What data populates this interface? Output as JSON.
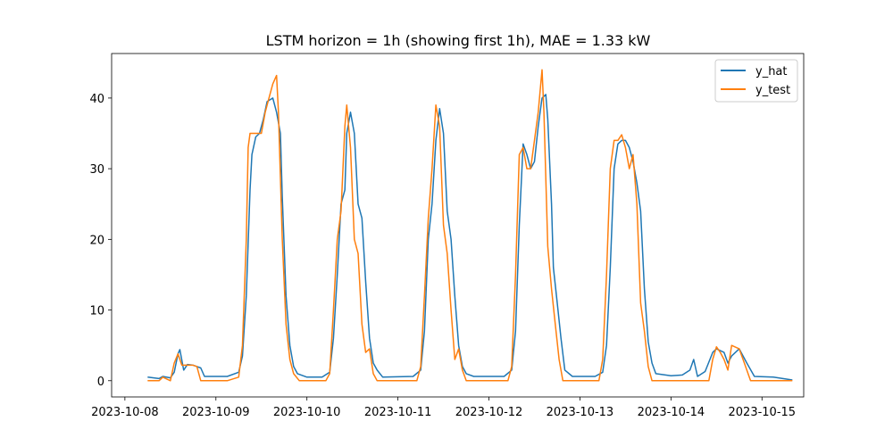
{
  "chart_data": {
    "type": "line",
    "title": "LSTM horizon = 1h (showing first 1h), MAE = 1.33 kW",
    "xlabel": "",
    "ylabel": "",
    "x_range": [
      "2023-10-07T20:30",
      "2023-10-15T11:00"
    ],
    "ylim": [
      -2.3,
      46.3
    ],
    "x_ticks": [
      "2023-10-08",
      "2023-10-09",
      "2023-10-10",
      "2023-10-11",
      "2023-10-12",
      "2023-10-13",
      "2023-10-14",
      "2023-10-15"
    ],
    "y_ticks": [
      0,
      10,
      20,
      30,
      40
    ],
    "grid": false,
    "legend": "top-right",
    "series": [
      {
        "name": "y_hat",
        "color": "#1f77b4",
        "points": [
          [
            "2023-10-08T06:00",
            0.5
          ],
          [
            "2023-10-08T09:00",
            0.3
          ],
          [
            "2023-10-08T10:00",
            0.6
          ],
          [
            "2023-10-08T12:00",
            0.4
          ],
          [
            "2023-10-08T13:00",
            1.2
          ],
          [
            "2023-10-08T14:00",
            3.8
          ],
          [
            "2023-10-08T14:30",
            4.4
          ],
          [
            "2023-10-08T15:30",
            1.5
          ],
          [
            "2023-10-08T16:30",
            2.3
          ],
          [
            "2023-10-08T18:00",
            2.2
          ],
          [
            "2023-10-08T20:00",
            1.8
          ],
          [
            "2023-10-08T21:00",
            0.6
          ],
          [
            "2023-10-09T03:00",
            0.6
          ],
          [
            "2023-10-09T06:00",
            1.2
          ],
          [
            "2023-10-09T07:00",
            3.5
          ],
          [
            "2023-10-09T08:00",
            12
          ],
          [
            "2023-10-09T09:00",
            27
          ],
          [
            "2023-10-09T09:30",
            32
          ],
          [
            "2023-10-09T10:30",
            34.5
          ],
          [
            "2023-10-09T11:30",
            35
          ],
          [
            "2023-10-09T12:30",
            37
          ],
          [
            "2023-10-09T13:30",
            39.5
          ],
          [
            "2023-10-09T15:00",
            40
          ],
          [
            "2023-10-09T16:00",
            38
          ],
          [
            "2023-10-09T17:00",
            35
          ],
          [
            "2023-10-09T17:30",
            26
          ],
          [
            "2023-10-09T18:30",
            12
          ],
          [
            "2023-10-09T19:30",
            5
          ],
          [
            "2023-10-09T20:30",
            2
          ],
          [
            "2023-10-09T21:30",
            1
          ],
          [
            "2023-10-10T00:00",
            0.5
          ],
          [
            "2023-10-10T04:00",
            0.5
          ],
          [
            "2023-10-10T06:00",
            1.2
          ],
          [
            "2023-10-10T07:00",
            6
          ],
          [
            "2023-10-10T08:00",
            15
          ],
          [
            "2023-10-10T09:00",
            25
          ],
          [
            "2023-10-10T10:00",
            27
          ],
          [
            "2023-10-10T10:30",
            35
          ],
          [
            "2023-10-10T11:30",
            38
          ],
          [
            "2023-10-10T12:30",
            35
          ],
          [
            "2023-10-10T13:30",
            25
          ],
          [
            "2023-10-10T14:30",
            23
          ],
          [
            "2023-10-10T15:30",
            14
          ],
          [
            "2023-10-10T16:30",
            6
          ],
          [
            "2023-10-10T17:30",
            2.5
          ],
          [
            "2023-10-10T18:30",
            1.5
          ],
          [
            "2023-10-10T20:00",
            0.5
          ],
          [
            "2023-10-11T04:00",
            0.6
          ],
          [
            "2023-10-11T06:00",
            1.5
          ],
          [
            "2023-10-11T07:00",
            7
          ],
          [
            "2023-10-11T08:00",
            20
          ],
          [
            "2023-10-11T09:00",
            25
          ],
          [
            "2023-10-11T10:00",
            34
          ],
          [
            "2023-10-11T11:00",
            38.5
          ],
          [
            "2023-10-11T12:00",
            35
          ],
          [
            "2023-10-11T13:00",
            24
          ],
          [
            "2023-10-11T14:00",
            20
          ],
          [
            "2023-10-11T15:00",
            12
          ],
          [
            "2023-10-11T16:00",
            5
          ],
          [
            "2023-10-11T17:00",
            2
          ],
          [
            "2023-10-11T18:00",
            1
          ],
          [
            "2023-10-11T20:00",
            0.6
          ],
          [
            "2023-10-12T04:00",
            0.6
          ],
          [
            "2023-10-12T06:00",
            1.5
          ],
          [
            "2023-10-12T07:00",
            7
          ],
          [
            "2023-10-12T08:00",
            22
          ],
          [
            "2023-10-12T09:00",
            33.5
          ],
          [
            "2023-10-12T10:00",
            32
          ],
          [
            "2023-10-12T11:00",
            30
          ],
          [
            "2023-10-12T12:00",
            31
          ],
          [
            "2023-10-12T13:00",
            36
          ],
          [
            "2023-10-12T14:00",
            40
          ],
          [
            "2023-10-12T15:00",
            40.5
          ],
          [
            "2023-10-12T15:30",
            37
          ],
          [
            "2023-10-12T16:30",
            25
          ],
          [
            "2023-10-12T17:00",
            16
          ],
          [
            "2023-10-12T18:00",
            11
          ],
          [
            "2023-10-12T19:00",
            6
          ],
          [
            "2023-10-12T20:00",
            1.5
          ],
          [
            "2023-10-12T22:00",
            0.6
          ],
          [
            "2023-10-13T04:00",
            0.6
          ],
          [
            "2023-10-13T06:00",
            1.2
          ],
          [
            "2023-10-13T07:00",
            5
          ],
          [
            "2023-10-13T08:00",
            16
          ],
          [
            "2023-10-13T09:00",
            30
          ],
          [
            "2023-10-13T10:00",
            33.5
          ],
          [
            "2023-10-13T11:00",
            34
          ],
          [
            "2023-10-13T12:00",
            34
          ],
          [
            "2023-10-13T13:00",
            33
          ],
          [
            "2023-10-13T14:00",
            31
          ],
          [
            "2023-10-13T15:00",
            28
          ],
          [
            "2023-10-13T16:00",
            24
          ],
          [
            "2023-10-13T17:00",
            13
          ],
          [
            "2023-10-13T18:00",
            5.5
          ],
          [
            "2023-10-13T19:00",
            2.5
          ],
          [
            "2023-10-13T20:00",
            1
          ],
          [
            "2023-10-14T00:00",
            0.7
          ],
          [
            "2023-10-14T03:00",
            0.8
          ],
          [
            "2023-10-14T05:00",
            1.5
          ],
          [
            "2023-10-14T06:00",
            3
          ],
          [
            "2023-10-14T07:00",
            0.6
          ],
          [
            "2023-10-14T09:00",
            1.3
          ],
          [
            "2023-10-14T11:00",
            4
          ],
          [
            "2023-10-14T12:00",
            4.5
          ],
          [
            "2023-10-14T14:00",
            4
          ],
          [
            "2023-10-14T15:00",
            2.5
          ],
          [
            "2023-10-14T16:00",
            3.5
          ],
          [
            "2023-10-14T18:00",
            4.5
          ],
          [
            "2023-10-14T20:00",
            2.5
          ],
          [
            "2023-10-14T22:00",
            0.6
          ],
          [
            "2023-10-15T03:00",
            0.5
          ],
          [
            "2023-10-15T08:00",
            0.1
          ]
        ]
      },
      {
        "name": "y_test",
        "color": "#ff7f0e",
        "points": [
          [
            "2023-10-08T06:00",
            0.0
          ],
          [
            "2023-10-08T09:00",
            0.0
          ],
          [
            "2023-10-08T10:00",
            0.5
          ],
          [
            "2023-10-08T12:00",
            0.0
          ],
          [
            "2023-10-08T13:00",
            2.5
          ],
          [
            "2023-10-08T14:00",
            3.8
          ],
          [
            "2023-10-08T15:00",
            2.2
          ],
          [
            "2023-10-08T18:00",
            2.2
          ],
          [
            "2023-10-08T19:00",
            2.0
          ],
          [
            "2023-10-08T20:00",
            0.0
          ],
          [
            "2023-10-09T03:00",
            0.0
          ],
          [
            "2023-10-09T06:00",
            0.5
          ],
          [
            "2023-10-09T07:00",
            5
          ],
          [
            "2023-10-09T08:00",
            20
          ],
          [
            "2023-10-09T08:30",
            33
          ],
          [
            "2023-10-09T09:00",
            35
          ],
          [
            "2023-10-09T11:00",
            35
          ],
          [
            "2023-10-09T12:00",
            35
          ],
          [
            "2023-10-09T13:00",
            38
          ],
          [
            "2023-10-09T14:00",
            40
          ],
          [
            "2023-10-09T15:00",
            42
          ],
          [
            "2023-10-09T16:00",
            43.2
          ],
          [
            "2023-10-09T16:30",
            38
          ],
          [
            "2023-10-09T17:30",
            20
          ],
          [
            "2023-10-09T18:30",
            8
          ],
          [
            "2023-10-09T19:30",
            3
          ],
          [
            "2023-10-09T20:30",
            1
          ],
          [
            "2023-10-09T22:00",
            0.0
          ],
          [
            "2023-10-10T05:00",
            0.0
          ],
          [
            "2023-10-10T06:00",
            1
          ],
          [
            "2023-10-10T07:00",
            10
          ],
          [
            "2023-10-10T08:00",
            20
          ],
          [
            "2023-10-10T09:00",
            24
          ],
          [
            "2023-10-10T10:00",
            36
          ],
          [
            "2023-10-10T10:30",
            39
          ],
          [
            "2023-10-10T11:30",
            33
          ],
          [
            "2023-10-10T12:30",
            20
          ],
          [
            "2023-10-10T13:30",
            18
          ],
          [
            "2023-10-10T14:30",
            8
          ],
          [
            "2023-10-10T15:30",
            4
          ],
          [
            "2023-10-10T16:30",
            4.5
          ],
          [
            "2023-10-10T17:30",
            1
          ],
          [
            "2023-10-10T18:30",
            0.0
          ],
          [
            "2023-10-11T05:00",
            0.0
          ],
          [
            "2023-10-11T06:00",
            2
          ],
          [
            "2023-10-11T07:00",
            12
          ],
          [
            "2023-10-11T08:00",
            23
          ],
          [
            "2023-10-11T09:00",
            30
          ],
          [
            "2023-10-11T10:00",
            39
          ],
          [
            "2023-10-11T11:00",
            36
          ],
          [
            "2023-10-11T12:00",
            22
          ],
          [
            "2023-10-11T13:00",
            18
          ],
          [
            "2023-10-11T14:00",
            10
          ],
          [
            "2023-10-11T15:00",
            3
          ],
          [
            "2023-10-11T16:00",
            4.5
          ],
          [
            "2023-10-11T17:00",
            1.5
          ],
          [
            "2023-10-11T18:00",
            0.0
          ],
          [
            "2023-10-12T05:00",
            0.0
          ],
          [
            "2023-10-12T06:00",
            2
          ],
          [
            "2023-10-12T07:00",
            15
          ],
          [
            "2023-10-12T08:00",
            32
          ],
          [
            "2023-10-12T09:00",
            33
          ],
          [
            "2023-10-12T10:00",
            30
          ],
          [
            "2023-10-12T11:00",
            30
          ],
          [
            "2023-10-12T12:00",
            34
          ],
          [
            "2023-10-12T13:00",
            38
          ],
          [
            "2023-10-12T14:00",
            44
          ],
          [
            "2023-10-12T14:30",
            38
          ],
          [
            "2023-10-12T15:30",
            19
          ],
          [
            "2023-10-12T16:30",
            13
          ],
          [
            "2023-10-12T17:30",
            8
          ],
          [
            "2023-10-12T18:30",
            3
          ],
          [
            "2023-10-12T19:30",
            0.0
          ],
          [
            "2023-10-13T05:00",
            0.0
          ],
          [
            "2023-10-13T06:00",
            3
          ],
          [
            "2023-10-13T07:00",
            15
          ],
          [
            "2023-10-13T08:00",
            30
          ],
          [
            "2023-10-13T09:00",
            34
          ],
          [
            "2023-10-13T10:00",
            34
          ],
          [
            "2023-10-13T11:00",
            34.8
          ],
          [
            "2023-10-13T12:00",
            33
          ],
          [
            "2023-10-13T13:00",
            30
          ],
          [
            "2023-10-13T14:00",
            32
          ],
          [
            "2023-10-13T15:00",
            25
          ],
          [
            "2023-10-13T16:00",
            11
          ],
          [
            "2023-10-13T17:00",
            7
          ],
          [
            "2023-10-13T18:00",
            2
          ],
          [
            "2023-10-13T19:00",
            0.0
          ],
          [
            "2023-10-14T10:00",
            0.0
          ],
          [
            "2023-10-14T11:00",
            3
          ],
          [
            "2023-10-14T12:00",
            4.8
          ],
          [
            "2023-10-14T13:00",
            4
          ],
          [
            "2023-10-14T14:00",
            3
          ],
          [
            "2023-10-14T15:00",
            1.5
          ],
          [
            "2023-10-14T16:00",
            5
          ],
          [
            "2023-10-14T18:00",
            4.5
          ],
          [
            "2023-10-14T19:00",
            3
          ],
          [
            "2023-10-14T21:00",
            0.0
          ],
          [
            "2023-10-15T08:00",
            0.0
          ]
        ]
      }
    ]
  }
}
